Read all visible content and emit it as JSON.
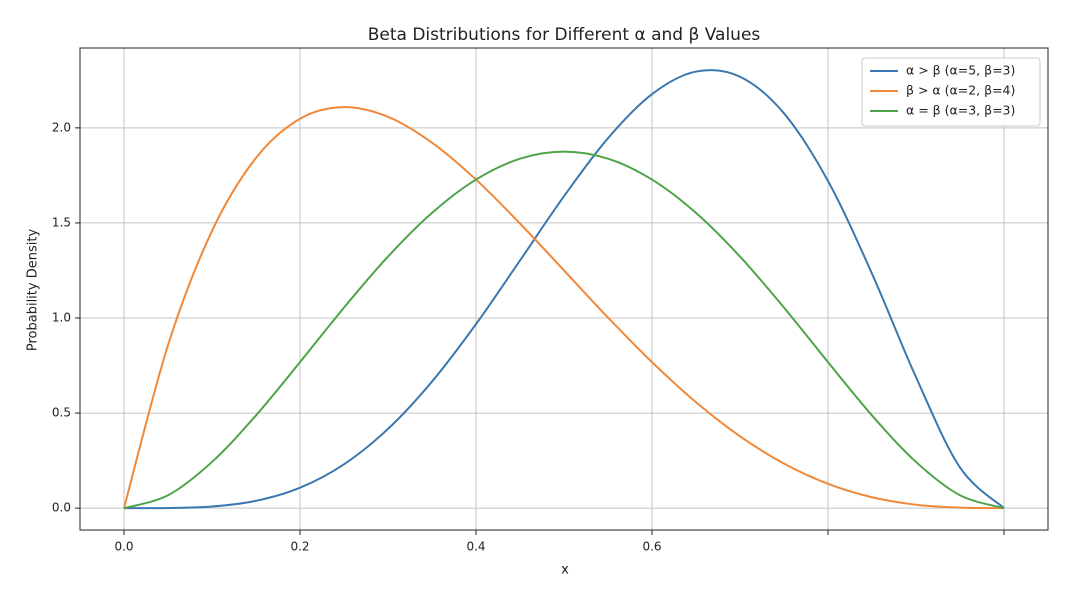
{
  "chart_data": {
    "type": "line",
    "title": "Beta Distributions for Different α and β Values",
    "x_label": "x",
    "y_label": "Probability Density",
    "x": [
      0,
      0.05,
      0.1,
      0.15,
      0.2,
      0.25,
      0.3,
      0.35,
      0.4,
      0.45,
      0.5,
      0.55,
      0.6,
      0.65,
      0.7,
      0.75,
      0.8,
      0.85,
      0.9,
      0.95,
      1.0
    ],
    "series": [
      {
        "name": "α > β (α=5, β=3)",
        "color": "#3b78b0",
        "values": [
          0,
          0.0006,
          0.0085,
          0.0384,
          0.1075,
          0.2307,
          0.4167,
          0.6657,
          0.9677,
          1.3025,
          1.6406,
          1.9457,
          2.1773,
          2.296,
          2.2689,
          2.0764,
          1.7203,
          1.2332,
          0.6889,
          0.2138,
          0
        ]
      },
      {
        "name": "β > α (α=2, β=4)",
        "color": "#f0883a",
        "values": [
          0,
          0.857,
          1.458,
          1.842,
          2.048,
          2.109,
          2.058,
          1.922,
          1.728,
          1.497,
          1.25,
          1.002,
          0.768,
          0.557,
          0.378,
          0.234,
          0.128,
          0.0574,
          0.018,
          0.0024,
          0
        ]
      },
      {
        "name": "α = β (α=3, β=3)",
        "color": "#4ea447",
        "values": [
          0,
          0.0677,
          0.243,
          0.4877,
          0.768,
          1.0547,
          1.323,
          1.5527,
          1.728,
          1.8377,
          1.875,
          1.8377,
          1.728,
          1.5527,
          1.323,
          1.0547,
          0.768,
          0.4877,
          0.243,
          0.0677,
          0
        ]
      }
    ],
    "xlim": [
      -0.05,
      1.05
    ],
    "ylim": [
      -0.115,
      2.42
    ],
    "xticks": [
      {
        "value": 0,
        "label": "0.0"
      },
      {
        "value": 0.2,
        "label": "0.2"
      },
      {
        "value": 0.4,
        "label": "0.4"
      },
      {
        "value": 0.6,
        "label": "0.6"
      },
      {
        "value": 0.8,
        "label": null
      },
      {
        "value": 1.0,
        "label": null
      }
    ],
    "yticks": [
      {
        "value": 0,
        "label": "0.0"
      },
      {
        "value": 0.5,
        "label": "0.5"
      },
      {
        "value": 1.0,
        "label": "1.0"
      },
      {
        "value": 1.5,
        "label": "1.5"
      },
      {
        "value": 2.0,
        "label": "2.0"
      }
    ],
    "grid": true,
    "legend": "upper right"
  }
}
